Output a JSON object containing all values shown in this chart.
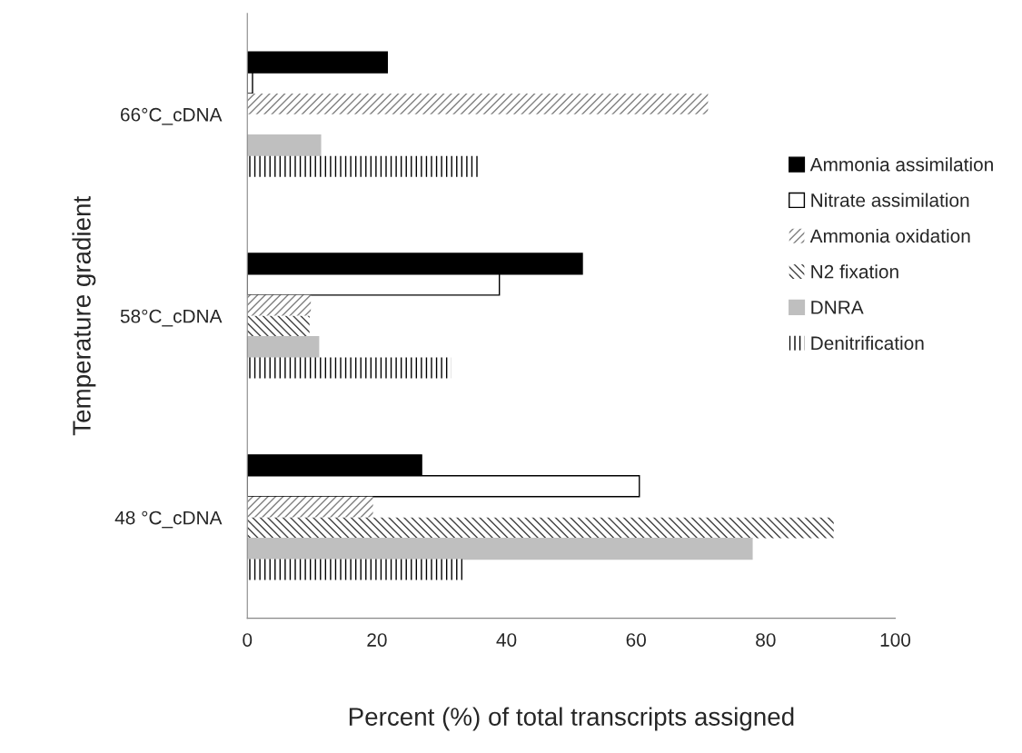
{
  "chart_data": {
    "type": "bar",
    "orientation": "horizontal",
    "categories": [
      "66°C_cDNA",
      "58°C_cDNA",
      "48 °C_cDNA"
    ],
    "xlabel": "Percent (%) of total transcripts assigned",
    "ylabel": "Temperature gradient",
    "xlim": [
      0,
      100
    ],
    "xticks": [
      0,
      20,
      40,
      60,
      80,
      100
    ],
    "grid": false,
    "legend": "right",
    "series": [
      {
        "name": "Ammonia assimilation",
        "color": "#000000",
        "values": [
          21.6,
          51.7,
          26.9
        ]
      },
      {
        "name": "Nitrate assimilation",
        "color": "#ffffff",
        "values": [
          0.8,
          38.9,
          60.5
        ]
      },
      {
        "name": "Ammonia oxidation",
        "color": "#808080",
        "values": [
          71.1,
          9.8,
          19.4
        ]
      },
      {
        "name": "N2 fixation",
        "color": "#404040",
        "values": [
          null,
          9.6,
          90.5
        ]
      },
      {
        "name": "DNRA",
        "color": "#bfbfbf",
        "values": [
          11.3,
          11.0,
          77.9
        ]
      },
      {
        "name": "Denitrification",
        "color": "#000000",
        "values": [
          35.6,
          31.4,
          33.2
        ]
      }
    ]
  }
}
